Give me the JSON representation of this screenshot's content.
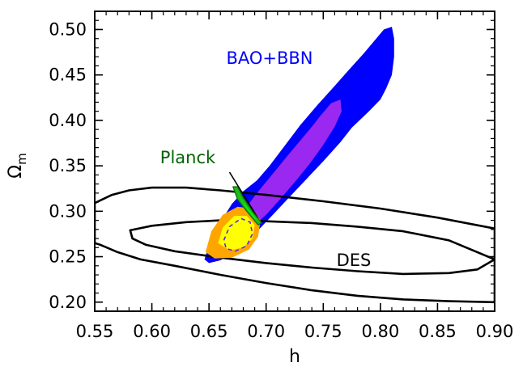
{
  "chart_data": {
    "type": "contour",
    "xlabel": "h",
    "ylabel": "Ω",
    "ylabel_subscript": "m",
    "xlim": [
      0.55,
      0.9
    ],
    "ylim": [
      0.19,
      0.52
    ],
    "x_ticks": [
      "0.55",
      "0.60",
      "0.65",
      "0.70",
      "0.75",
      "0.80",
      "0.85",
      "0.90"
    ],
    "y_ticks": [
      "0.20",
      "0.25",
      "0.30",
      "0.35",
      "0.40",
      "0.45",
      "0.50"
    ],
    "colors": {
      "bao_outer": "#0000ff",
      "bao_inner": "#9a28f0",
      "combined_outer": "#ffa500",
      "combined_inner": "#ffff00",
      "planck_outer": "#1cb81c",
      "planck_inner": "#00ff00",
      "des_contours": "#000000",
      "bao_label": "#0000ff",
      "planck_label": "#006400",
      "des_label": "#000000"
    },
    "annotations": [
      {
        "id": "bao",
        "text": "BAO+BBN"
      },
      {
        "id": "planck",
        "text": "Planck"
      },
      {
        "id": "des",
        "text": "DES"
      }
    ],
    "series": [
      {
        "id": "bao_outer",
        "points": [
          [
            0.646,
            0.247
          ],
          [
            0.65,
            0.262
          ],
          [
            0.66,
            0.288
          ],
          [
            0.67,
            0.308
          ],
          [
            0.68,
            0.322
          ],
          [
            0.692,
            0.334
          ],
          [
            0.703,
            0.35
          ],
          [
            0.715,
            0.37
          ],
          [
            0.73,
            0.395
          ],
          [
            0.745,
            0.417
          ],
          [
            0.76,
            0.438
          ],
          [
            0.772,
            0.455
          ],
          [
            0.785,
            0.473
          ],
          [
            0.795,
            0.488
          ],
          [
            0.803,
            0.5
          ],
          [
            0.81,
            0.503
          ],
          [
            0.812,
            0.49
          ],
          [
            0.812,
            0.47
          ],
          [
            0.81,
            0.45
          ],
          [
            0.805,
            0.435
          ],
          [
            0.8,
            0.423
          ],
          [
            0.79,
            0.41
          ],
          [
            0.775,
            0.392
          ],
          [
            0.765,
            0.376
          ],
          [
            0.75,
            0.355
          ],
          [
            0.735,
            0.335
          ],
          [
            0.72,
            0.315
          ],
          [
            0.705,
            0.295
          ],
          [
            0.69,
            0.275
          ],
          [
            0.675,
            0.258
          ],
          [
            0.66,
            0.246
          ],
          [
            0.65,
            0.243
          ]
        ]
      },
      {
        "id": "bao_inner",
        "points": [
          [
            0.672,
            0.285
          ],
          [
            0.68,
            0.3
          ],
          [
            0.692,
            0.32
          ],
          [
            0.705,
            0.34
          ],
          [
            0.718,
            0.36
          ],
          [
            0.73,
            0.378
          ],
          [
            0.74,
            0.393
          ],
          [
            0.748,
            0.406
          ],
          [
            0.757,
            0.419
          ],
          [
            0.765,
            0.423
          ],
          [
            0.766,
            0.41
          ],
          [
            0.76,
            0.393
          ],
          [
            0.75,
            0.373
          ],
          [
            0.738,
            0.352
          ],
          [
            0.725,
            0.332
          ],
          [
            0.712,
            0.313
          ],
          [
            0.7,
            0.296
          ],
          [
            0.688,
            0.283
          ],
          [
            0.678,
            0.278
          ]
        ]
      },
      {
        "id": "combined_outer",
        "points": [
          [
            0.647,
            0.255
          ],
          [
            0.652,
            0.278
          ],
          [
            0.662,
            0.296
          ],
          [
            0.675,
            0.305
          ],
          [
            0.688,
            0.303
          ],
          [
            0.695,
            0.29
          ],
          [
            0.693,
            0.272
          ],
          [
            0.685,
            0.258
          ],
          [
            0.67,
            0.249
          ],
          [
            0.655,
            0.248
          ]
        ]
      },
      {
        "id": "combined_inner",
        "points": [
          [
            0.658,
            0.265
          ],
          [
            0.662,
            0.282
          ],
          [
            0.672,
            0.295
          ],
          [
            0.683,
            0.295
          ],
          [
            0.69,
            0.285
          ],
          [
            0.688,
            0.27
          ],
          [
            0.68,
            0.26
          ],
          [
            0.668,
            0.257
          ]
        ]
      },
      {
        "id": "planck_outer",
        "points": [
          [
            0.671,
            0.327
          ],
          [
            0.675,
            0.327
          ],
          [
            0.68,
            0.315
          ],
          [
            0.688,
            0.3
          ],
          [
            0.696,
            0.287
          ],
          [
            0.693,
            0.285
          ],
          [
            0.683,
            0.3
          ],
          [
            0.675,
            0.313
          ]
        ]
      },
      {
        "id": "planck_inner",
        "points": [
          [
            0.674,
            0.323
          ],
          [
            0.68,
            0.31
          ],
          [
            0.688,
            0.297
          ],
          [
            0.693,
            0.289
          ],
          [
            0.689,
            0.293
          ],
          [
            0.681,
            0.306
          ]
        ]
      },
      {
        "id": "planck_pointer",
        "points": [
          [
            0.668,
            0.343
          ],
          [
            0.693,
            0.292
          ]
        ]
      },
      {
        "id": "combined_dashed",
        "points": [
          [
            0.663,
            0.268
          ],
          [
            0.668,
            0.283
          ],
          [
            0.678,
            0.292
          ],
          [
            0.686,
            0.288
          ],
          [
            0.688,
            0.275
          ],
          [
            0.683,
            0.262
          ],
          [
            0.673,
            0.256
          ],
          [
            0.665,
            0.259
          ]
        ]
      },
      {
        "id": "des_outer",
        "points": [
          [
            0.55,
            0.309
          ],
          [
            0.565,
            0.318
          ],
          [
            0.58,
            0.323
          ],
          [
            0.6,
            0.326
          ],
          [
            0.63,
            0.326
          ],
          [
            0.66,
            0.323
          ],
          [
            0.7,
            0.318
          ],
          [
            0.75,
            0.311
          ],
          [
            0.8,
            0.303
          ],
          [
            0.85,
            0.293
          ],
          [
            0.9,
            0.281
          ],
          [
            0.9,
            0.2
          ],
          [
            0.86,
            0.201
          ],
          [
            0.82,
            0.203
          ],
          [
            0.78,
            0.207
          ],
          [
            0.74,
            0.213
          ],
          [
            0.7,
            0.221
          ],
          [
            0.66,
            0.23
          ],
          [
            0.62,
            0.24
          ],
          [
            0.59,
            0.247
          ],
          [
            0.57,
            0.255
          ],
          [
            0.555,
            0.263
          ],
          [
            0.55,
            0.265
          ]
        ]
      },
      {
        "id": "des_inner",
        "points": [
          [
            0.581,
            0.279
          ],
          [
            0.6,
            0.284
          ],
          [
            0.63,
            0.288
          ],
          [
            0.66,
            0.29
          ],
          [
            0.7,
            0.289
          ],
          [
            0.74,
            0.287
          ],
          [
            0.78,
            0.283
          ],
          [
            0.82,
            0.278
          ],
          [
            0.86,
            0.268
          ],
          [
            0.9,
            0.247
          ],
          [
            0.885,
            0.236
          ],
          [
            0.86,
            0.232
          ],
          [
            0.82,
            0.231
          ],
          [
            0.78,
            0.234
          ],
          [
            0.74,
            0.238
          ],
          [
            0.7,
            0.243
          ],
          [
            0.66,
            0.249
          ],
          [
            0.62,
            0.256
          ],
          [
            0.595,
            0.263
          ],
          [
            0.583,
            0.27
          ]
        ]
      }
    ]
  }
}
